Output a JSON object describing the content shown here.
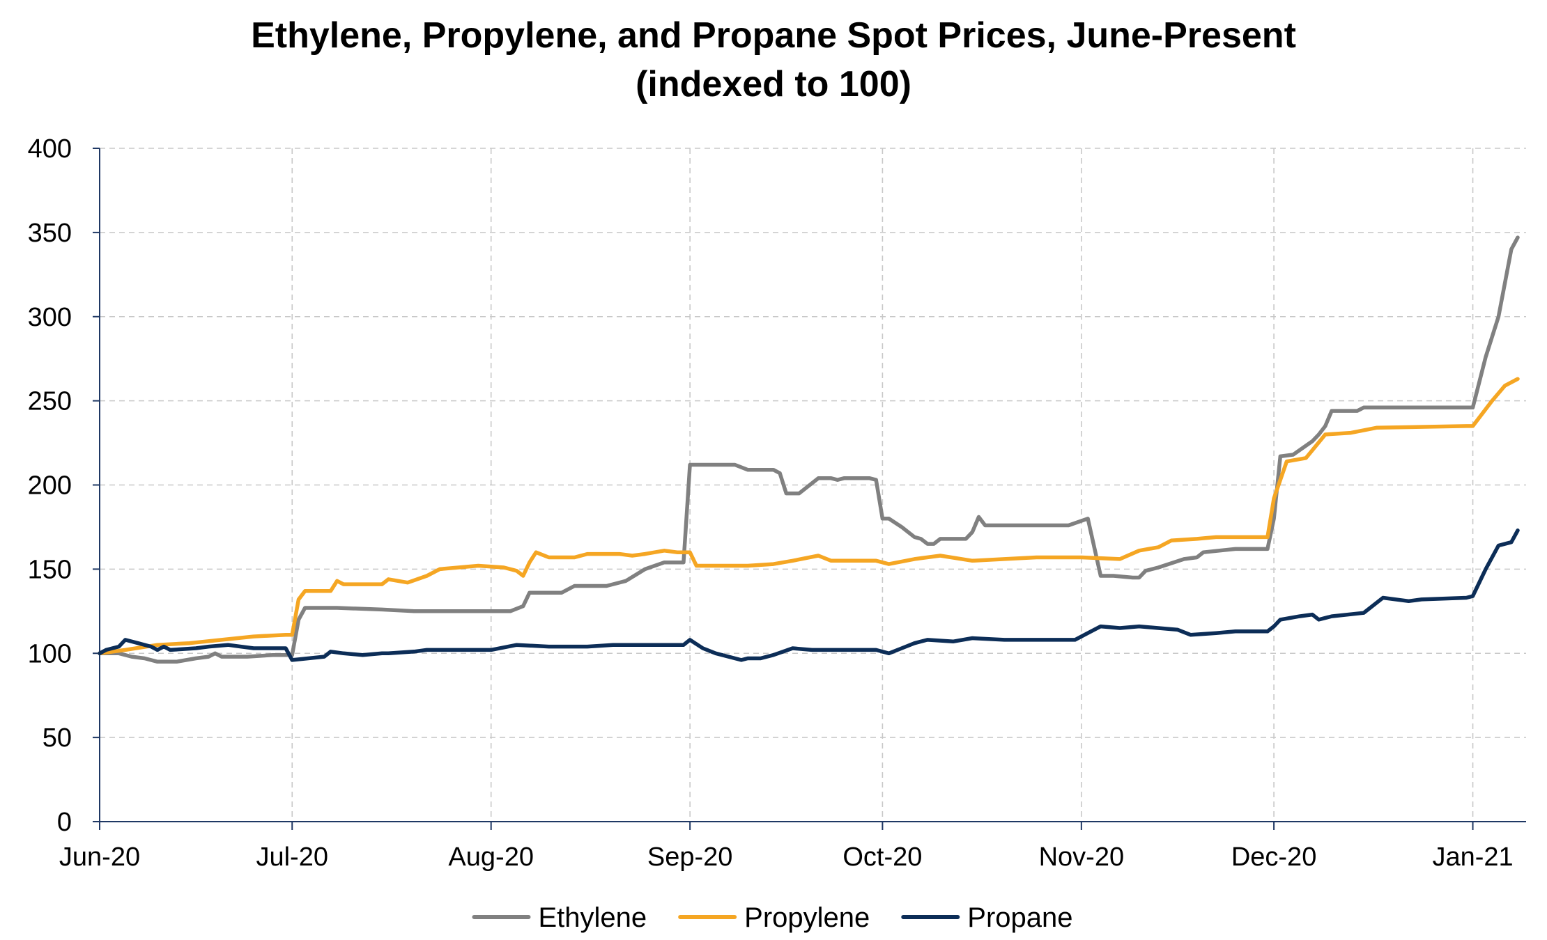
{
  "chart_data": {
    "type": "line",
    "title": "Ethylene, Propylene, and Propane Spot Prices, June-Present",
    "subtitle": "(indexed to 100)",
    "xlabel": "",
    "ylabel": "",
    "ylim": [
      0,
      400
    ],
    "yticks": [
      "0",
      "50",
      "100",
      "150",
      "200",
      "250",
      "300",
      "350",
      "400"
    ],
    "xticks": [
      "Jun-20",
      "Jul-20",
      "Aug-20",
      "Sep-20",
      "Oct-20",
      "Nov-20",
      "Dec-20",
      "Jan-21"
    ],
    "xtick_dates": [
      "2020-06-01",
      "2020-07-01",
      "2020-08-01",
      "2020-09-01",
      "2020-10-01",
      "2020-11-01",
      "2020-12-01",
      "2021-01-01"
    ],
    "xlim": [
      "2020-06-01",
      "2021-01-08"
    ],
    "grid": true,
    "legend_position": "bottom",
    "series": [
      {
        "name": "Ethylene",
        "color": "#808080",
        "points": [
          [
            "2020-06-01",
            100
          ],
          [
            "2020-06-04",
            100
          ],
          [
            "2020-06-06",
            98
          ],
          [
            "2020-06-08",
            97
          ],
          [
            "2020-06-10",
            95
          ],
          [
            "2020-06-13",
            95
          ],
          [
            "2020-06-16",
            97
          ],
          [
            "2020-06-18",
            98
          ],
          [
            "2020-06-19",
            100
          ],
          [
            "2020-06-20",
            98
          ],
          [
            "2020-06-24",
            98
          ],
          [
            "2020-06-28",
            99
          ],
          [
            "2020-06-30",
            99
          ],
          [
            "2020-07-01",
            99
          ],
          [
            "2020-07-02",
            120
          ],
          [
            "2020-07-03",
            127
          ],
          [
            "2020-07-08",
            127
          ],
          [
            "2020-07-15",
            126
          ],
          [
            "2020-07-20",
            125
          ],
          [
            "2020-07-25",
            125
          ],
          [
            "2020-07-31",
            125
          ],
          [
            "2020-08-04",
            125
          ],
          [
            "2020-08-06",
            128
          ],
          [
            "2020-08-07",
            136
          ],
          [
            "2020-08-12",
            136
          ],
          [
            "2020-08-14",
            140
          ],
          [
            "2020-08-19",
            140
          ],
          [
            "2020-08-22",
            143
          ],
          [
            "2020-08-25",
            150
          ],
          [
            "2020-08-28",
            154
          ],
          [
            "2020-08-31",
            154
          ],
          [
            "2020-09-01",
            212
          ],
          [
            "2020-09-08",
            212
          ],
          [
            "2020-09-10",
            209
          ],
          [
            "2020-09-14",
            209
          ],
          [
            "2020-09-15",
            207
          ],
          [
            "2020-09-16",
            195
          ],
          [
            "2020-09-18",
            195
          ],
          [
            "2020-09-21",
            204
          ],
          [
            "2020-09-23",
            204
          ],
          [
            "2020-09-24",
            203
          ],
          [
            "2020-09-25",
            204
          ],
          [
            "2020-09-29",
            204
          ],
          [
            "2020-09-30",
            203
          ],
          [
            "2020-10-01",
            180
          ],
          [
            "2020-10-02",
            180
          ],
          [
            "2020-10-04",
            175
          ],
          [
            "2020-10-06",
            169
          ],
          [
            "2020-10-07",
            168
          ],
          [
            "2020-10-08",
            165
          ],
          [
            "2020-10-09",
            165
          ],
          [
            "2020-10-10",
            168
          ],
          [
            "2020-10-14",
            168
          ],
          [
            "2020-10-15",
            172
          ],
          [
            "2020-10-16",
            181
          ],
          [
            "2020-10-17",
            176
          ],
          [
            "2020-10-30",
            176
          ],
          [
            "2020-11-02",
            180
          ],
          [
            "2020-11-04",
            146
          ],
          [
            "2020-11-06",
            146
          ],
          [
            "2020-11-09",
            145
          ],
          [
            "2020-11-10",
            145
          ],
          [
            "2020-11-11",
            149
          ],
          [
            "2020-11-13",
            151
          ],
          [
            "2020-11-17",
            156
          ],
          [
            "2020-11-19",
            157
          ],
          [
            "2020-11-20",
            160
          ],
          [
            "2020-11-25",
            162
          ],
          [
            "2020-11-30",
            162
          ],
          [
            "2020-12-01",
            180
          ],
          [
            "2020-12-02",
            217
          ],
          [
            "2020-12-04",
            218
          ],
          [
            "2020-12-07",
            226
          ],
          [
            "2020-12-08",
            230
          ],
          [
            "2020-12-09",
            235
          ],
          [
            "2020-12-10",
            244
          ],
          [
            "2020-12-14",
            244
          ],
          [
            "2020-12-15",
            246
          ],
          [
            "2020-12-31",
            246
          ],
          [
            "2021-01-01",
            246
          ],
          [
            "2021-01-03",
            276
          ],
          [
            "2021-01-05",
            300
          ],
          [
            "2021-01-07",
            340
          ],
          [
            "2021-01-08",
            347
          ]
        ]
      },
      {
        "name": "Propylene",
        "color": "#f5a623",
        "points": [
          [
            "2020-06-01",
            100
          ],
          [
            "2020-06-05",
            102
          ],
          [
            "2020-06-10",
            105
          ],
          [
            "2020-06-15",
            106
          ],
          [
            "2020-06-20",
            108
          ],
          [
            "2020-06-25",
            110
          ],
          [
            "2020-06-30",
            111
          ],
          [
            "2020-07-01",
            111
          ],
          [
            "2020-07-02",
            132
          ],
          [
            "2020-07-03",
            137
          ],
          [
            "2020-07-07",
            137
          ],
          [
            "2020-07-08",
            143
          ],
          [
            "2020-07-09",
            141
          ],
          [
            "2020-07-15",
            141
          ],
          [
            "2020-07-16",
            144
          ],
          [
            "2020-07-19",
            142
          ],
          [
            "2020-07-22",
            146
          ],
          [
            "2020-07-24",
            150
          ],
          [
            "2020-07-30",
            152
          ],
          [
            "2020-08-03",
            151
          ],
          [
            "2020-08-05",
            149
          ],
          [
            "2020-08-06",
            146
          ],
          [
            "2020-08-07",
            154
          ],
          [
            "2020-08-08",
            160
          ],
          [
            "2020-08-10",
            157
          ],
          [
            "2020-08-14",
            157
          ],
          [
            "2020-08-16",
            159
          ],
          [
            "2020-08-21",
            159
          ],
          [
            "2020-08-23",
            158
          ],
          [
            "2020-08-25",
            159
          ],
          [
            "2020-08-28",
            161
          ],
          [
            "2020-08-30",
            160
          ],
          [
            "2020-09-01",
            160
          ],
          [
            "2020-09-02",
            152
          ],
          [
            "2020-09-10",
            152
          ],
          [
            "2020-09-14",
            153
          ],
          [
            "2020-09-17",
            155
          ],
          [
            "2020-09-21",
            158
          ],
          [
            "2020-09-23",
            155
          ],
          [
            "2020-09-30",
            155
          ],
          [
            "2020-10-02",
            153
          ],
          [
            "2020-10-06",
            156
          ],
          [
            "2020-10-10",
            158
          ],
          [
            "2020-10-15",
            155
          ],
          [
            "2020-10-20",
            156
          ],
          [
            "2020-10-25",
            157
          ],
          [
            "2020-11-01",
            157
          ],
          [
            "2020-11-07",
            156
          ],
          [
            "2020-11-10",
            161
          ],
          [
            "2020-11-13",
            163
          ],
          [
            "2020-11-15",
            167
          ],
          [
            "2020-11-19",
            168
          ],
          [
            "2020-11-22",
            169
          ],
          [
            "2020-11-30",
            169
          ],
          [
            "2020-12-01",
            192
          ],
          [
            "2020-12-03",
            214
          ],
          [
            "2020-12-06",
            216
          ],
          [
            "2020-12-09",
            230
          ],
          [
            "2020-12-13",
            231
          ],
          [
            "2020-12-17",
            234
          ],
          [
            "2020-12-31",
            235
          ],
          [
            "2021-01-01",
            235
          ],
          [
            "2021-01-04",
            250
          ],
          [
            "2021-01-06",
            259
          ],
          [
            "2021-01-08",
            263
          ]
        ]
      },
      {
        "name": "Propane",
        "color": "#0c2d57",
        "points": [
          [
            "2020-06-01",
            100
          ],
          [
            "2020-06-02",
            102
          ],
          [
            "2020-06-04",
            104
          ],
          [
            "2020-06-05",
            108
          ],
          [
            "2020-06-07",
            106
          ],
          [
            "2020-06-09",
            104
          ],
          [
            "2020-06-10",
            102
          ],
          [
            "2020-06-11",
            104
          ],
          [
            "2020-06-12",
            102
          ],
          [
            "2020-06-16",
            103
          ],
          [
            "2020-06-18",
            104
          ],
          [
            "2020-06-21",
            105
          ],
          [
            "2020-06-23",
            104
          ],
          [
            "2020-06-25",
            103
          ],
          [
            "2020-06-30",
            103
          ],
          [
            "2020-07-01",
            96
          ],
          [
            "2020-07-06",
            98
          ],
          [
            "2020-07-07",
            101
          ],
          [
            "2020-07-09",
            100
          ],
          [
            "2020-07-12",
            99
          ],
          [
            "2020-07-15",
            100
          ],
          [
            "2020-07-16",
            100
          ],
          [
            "2020-07-20",
            101
          ],
          [
            "2020-07-22",
            102
          ],
          [
            "2020-07-25",
            102
          ],
          [
            "2020-07-28",
            102
          ],
          [
            "2020-08-01",
            102
          ],
          [
            "2020-08-05",
            105
          ],
          [
            "2020-08-10",
            104
          ],
          [
            "2020-08-16",
            104
          ],
          [
            "2020-08-20",
            105
          ],
          [
            "2020-08-25",
            105
          ],
          [
            "2020-08-31",
            105
          ],
          [
            "2020-09-01",
            108
          ],
          [
            "2020-09-03",
            103
          ],
          [
            "2020-09-05",
            100
          ],
          [
            "2020-09-09",
            96
          ],
          [
            "2020-09-10",
            97
          ],
          [
            "2020-09-12",
            97
          ],
          [
            "2020-09-14",
            99
          ],
          [
            "2020-09-17",
            103
          ],
          [
            "2020-09-20",
            102
          ],
          [
            "2020-09-23",
            102
          ],
          [
            "2020-09-30",
            102
          ],
          [
            "2020-10-02",
            100
          ],
          [
            "2020-10-04",
            103
          ],
          [
            "2020-10-06",
            106
          ],
          [
            "2020-10-08",
            108
          ],
          [
            "2020-10-12",
            107
          ],
          [
            "2020-10-15",
            109
          ],
          [
            "2020-10-20",
            108
          ],
          [
            "2020-10-25",
            108
          ],
          [
            "2020-10-31",
            108
          ],
          [
            "2020-11-02",
            112
          ],
          [
            "2020-11-04",
            116
          ],
          [
            "2020-11-07",
            115
          ],
          [
            "2020-11-10",
            116
          ],
          [
            "2020-11-13",
            115
          ],
          [
            "2020-11-16",
            114
          ],
          [
            "2020-11-18",
            111
          ],
          [
            "2020-11-22",
            112
          ],
          [
            "2020-11-25",
            113
          ],
          [
            "2020-11-30",
            113
          ],
          [
            "2020-12-01",
            116
          ],
          [
            "2020-12-02",
            120
          ],
          [
            "2020-12-05",
            122
          ],
          [
            "2020-12-07",
            123
          ],
          [
            "2020-12-08",
            120
          ],
          [
            "2020-12-10",
            122
          ],
          [
            "2020-12-15",
            124
          ],
          [
            "2020-12-18",
            133
          ],
          [
            "2020-12-22",
            131
          ],
          [
            "2020-12-24",
            132
          ],
          [
            "2020-12-31",
            133
          ],
          [
            "2021-01-01",
            134
          ],
          [
            "2021-01-03",
            150
          ],
          [
            "2021-01-05",
            164
          ],
          [
            "2021-01-07",
            166
          ],
          [
            "2021-01-08",
            173
          ]
        ]
      }
    ]
  }
}
